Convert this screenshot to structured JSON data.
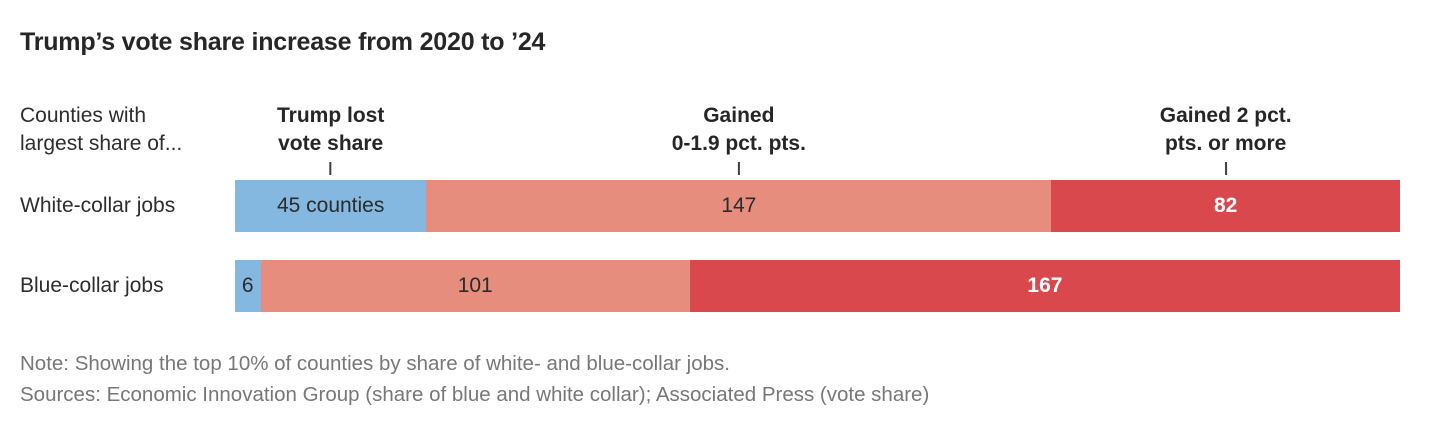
{
  "chart_data": {
    "type": "bar",
    "variant": "horizontal-stacked",
    "title": "Trump’s vote share increase from 2020 to ’24",
    "row_group_header": {
      "line1": "Counties with",
      "line2": "largest share of..."
    },
    "column_headers": [
      {
        "line1": "Trump lost",
        "line2": "vote share"
      },
      {
        "line1": "Gained",
        "line2": "0-1.9 pct. pts."
      },
      {
        "line1": "Gained 2 pct.",
        "line2": "pts. or more"
      }
    ],
    "segments": [
      {
        "name": "Trump lost vote share",
        "color": "#85b8e1",
        "label_color": "#2b2b2b"
      },
      {
        "name": "Gained 0-1.9 pct. pts.",
        "color": "#e78d7d",
        "label_color": "#2b2b2b"
      },
      {
        "name": "Gained 2 pct. pts. or more",
        "color": "#d8484d",
        "label_color": "#ffffff"
      }
    ],
    "categories": [
      "White-collar jobs",
      "Blue-collar jobs"
    ],
    "series": [
      {
        "category": "White-collar jobs",
        "values": [
          45,
          147,
          82
        ],
        "labels": [
          "45 counties",
          "147",
          "82"
        ]
      },
      {
        "category": "Blue-collar jobs",
        "values": [
          6,
          101,
          167
        ],
        "labels": [
          "6",
          "101",
          "167"
        ]
      }
    ],
    "unit": "counties",
    "note": "Note: Showing the top 10% of counties by share of white- and blue-collar jobs.",
    "sources": "Sources: Economic Innovation Group (share of blue and white collar); Associated Press (vote share)"
  }
}
